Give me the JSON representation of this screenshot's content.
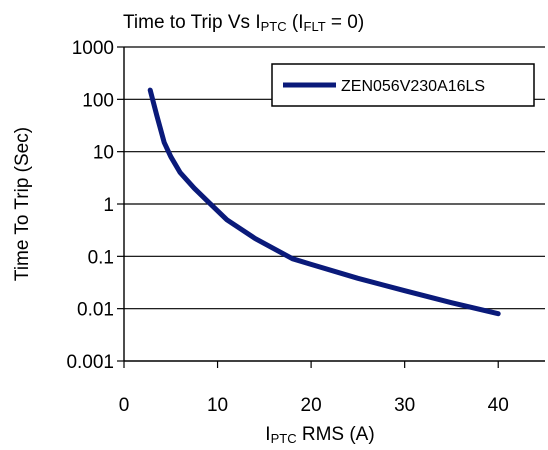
{
  "chart_data": {
    "type": "line",
    "title": {
      "main": "Time to Trip Vs I",
      "main_sub": "PTC",
      "paren_open": " (I",
      "paren_sub": "FLT",
      "paren_close": " = 0)"
    },
    "xlabel": {
      "main": "I",
      "sub": "PTC",
      "rest": " RMS (A)"
    },
    "ylabel": "Time To Trip (Sec)",
    "xlim": [
      0,
      45
    ],
    "ylim": [
      0.001,
      1000
    ],
    "yscale": "log",
    "x_ticks": [
      "0",
      "10",
      "20",
      "30",
      "40"
    ],
    "x_tick_values": [
      0,
      10,
      20,
      30,
      40
    ],
    "y_ticks": [
      "1000",
      "100",
      "10",
      "1",
      "0.1",
      "0.01",
      "0.001"
    ],
    "y_tick_values": [
      1000,
      100,
      10,
      1,
      0.1,
      0.01,
      0.001
    ],
    "grid": "horizontal",
    "legend_position": "top-right",
    "series": [
      {
        "name": "ZEN056V230A16LS",
        "color": "#0a1a7a",
        "x": [
          2.8,
          3.5,
          4.3,
          5.0,
          6.0,
          7.5,
          9.0,
          11.0,
          14.0,
          18.0,
          20.0,
          25.0,
          30.0,
          35.0,
          40.0
        ],
        "y": [
          150,
          50,
          15,
          8,
          4,
          2,
          1.1,
          0.5,
          0.22,
          0.09,
          0.07,
          0.038,
          0.022,
          0.013,
          0.008
        ]
      }
    ]
  }
}
